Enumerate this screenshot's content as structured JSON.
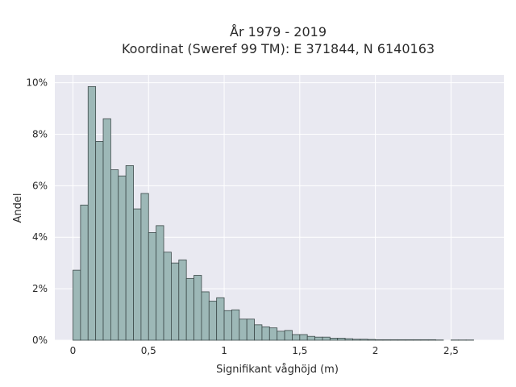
{
  "chart_data": {
    "type": "bar",
    "title": [
      "År 1979 - 2019",
      "Koordinat (Sweref 99 TM): E 371844, N 6140163"
    ],
    "xlabel": "Signifikant våghöjd (m)",
    "ylabel": "Andel",
    "xlim": [
      -0.12,
      2.85
    ],
    "ylim": [
      0,
      10.3
    ],
    "grid": true,
    "bin_width": 0.05,
    "x_ticks": [
      {
        "value": 0,
        "label": "0"
      },
      {
        "value": 0.5,
        "label": "0,5"
      },
      {
        "value": 1,
        "label": "1"
      },
      {
        "value": 1.5,
        "label": "1,5"
      },
      {
        "value": 2,
        "label": "2"
      },
      {
        "value": 2.5,
        "label": "2,5"
      }
    ],
    "y_ticks": [
      {
        "value": 0,
        "label": "0%"
      },
      {
        "value": 2,
        "label": "2%"
      },
      {
        "value": 4,
        "label": "4%"
      },
      {
        "value": 6,
        "label": "6%"
      },
      {
        "value": 8,
        "label": "8%"
      },
      {
        "value": 10,
        "label": "10%"
      }
    ],
    "bin_starts": [
      0,
      0.05,
      0.1,
      0.15,
      0.2,
      0.25,
      0.3,
      0.35,
      0.4,
      0.45,
      0.5,
      0.55,
      0.6,
      0.65,
      0.7,
      0.75,
      0.8,
      0.85,
      0.9,
      0.95,
      1.0,
      1.05,
      1.1,
      1.15,
      1.2,
      1.25,
      1.3,
      1.35,
      1.4,
      1.45,
      1.5,
      1.55,
      1.6,
      1.65,
      1.7,
      1.75,
      1.8,
      1.85,
      1.9,
      1.95,
      2.0,
      2.05,
      2.1,
      2.15,
      2.2,
      2.25,
      2.3,
      2.35,
      2.4,
      2.5,
      2.55,
      2.6
    ],
    "values": [
      2.72,
      5.25,
      9.85,
      7.72,
      8.6,
      6.62,
      6.38,
      6.78,
      5.1,
      5.7,
      4.18,
      4.45,
      3.42,
      3.0,
      3.12,
      2.4,
      2.52,
      1.88,
      1.52,
      1.65,
      1.15,
      1.18,
      0.82,
      0.82,
      0.6,
      0.52,
      0.48,
      0.35,
      0.38,
      0.22,
      0.22,
      0.15,
      0.12,
      0.12,
      0.08,
      0.08,
      0.06,
      0.04,
      0.04,
      0.03,
      0.02,
      0.02,
      0.02,
      0.02,
      0.02,
      0.02,
      0.02,
      0.02,
      0.01,
      0.01,
      0.01,
      0.01
    ],
    "colors": {
      "bar_fill": "#9db8b7",
      "bar_stroke": "#3d4a4a",
      "plot_bg": "#e9e9f1",
      "grid": "#ffffff",
      "text": "#2a2a2a"
    }
  }
}
